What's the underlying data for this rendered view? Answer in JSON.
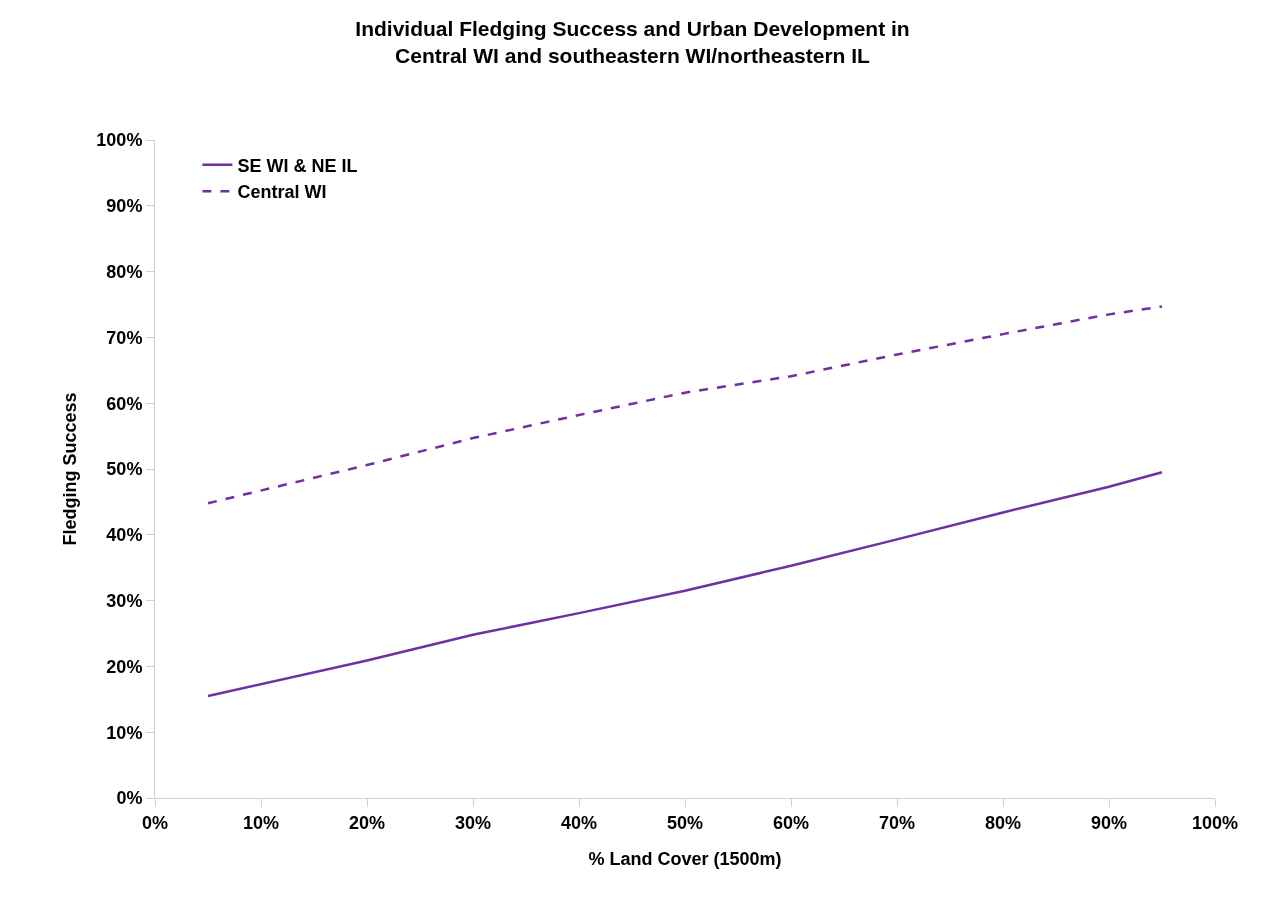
{
  "chart_data": {
    "type": "line",
    "title": "Individual Fledging Success and Urban Development in\nCentral WI and southeastern WI/northeastern IL",
    "xlabel": "% Land Cover (1500m)",
    "ylabel": "Fledging Success",
    "x": [
      5,
      20,
      30,
      40,
      50,
      60,
      70,
      80,
      90,
      95
    ],
    "series": [
      {
        "name": "SE WI & NE IL",
        "color": "#7030a0",
        "line_style": "solid",
        "values": [
          15.5,
          20.9,
          24.8,
          28.1,
          31.5,
          35.3,
          39.3,
          43.4,
          47.3,
          49.5
        ]
      },
      {
        "name": "Central WI",
        "color": "#7030a0",
        "line_style": "dashed",
        "values": [
          44.8,
          50.6,
          54.7,
          58.2,
          61.6,
          64.1,
          67.4,
          70.5,
          73.5,
          74.7
        ]
      }
    ],
    "xlim": [
      0,
      100
    ],
    "xticks": [
      {
        "value": 0,
        "label": "0%"
      },
      {
        "value": 10,
        "label": "10%"
      },
      {
        "value": 20,
        "label": "20%"
      },
      {
        "value": 30,
        "label": "30%"
      },
      {
        "value": 40,
        "label": "40%"
      },
      {
        "value": 50,
        "label": "50%"
      },
      {
        "value": 60,
        "label": "60%"
      },
      {
        "value": 70,
        "label": "70%"
      },
      {
        "value": 80,
        "label": "80%"
      },
      {
        "value": 90,
        "label": "90%"
      },
      {
        "value": 100,
        "label": "100%"
      }
    ],
    "ylim": [
      0,
      100
    ],
    "yticks": [
      {
        "value": 0,
        "label": "0%"
      },
      {
        "value": 10,
        "label": "10%"
      },
      {
        "value": 20,
        "label": "20%"
      },
      {
        "value": 30,
        "label": "30%"
      },
      {
        "value": 40,
        "label": "40%"
      },
      {
        "value": 50,
        "label": "50%"
      },
      {
        "value": 60,
        "label": "60%"
      },
      {
        "value": 70,
        "label": "70%"
      },
      {
        "value": 80,
        "label": "80%"
      },
      {
        "value": 90,
        "label": "90%"
      },
      {
        "value": 100,
        "label": "100%"
      }
    ],
    "grid": false,
    "legend": "top left",
    "marker": "none"
  }
}
